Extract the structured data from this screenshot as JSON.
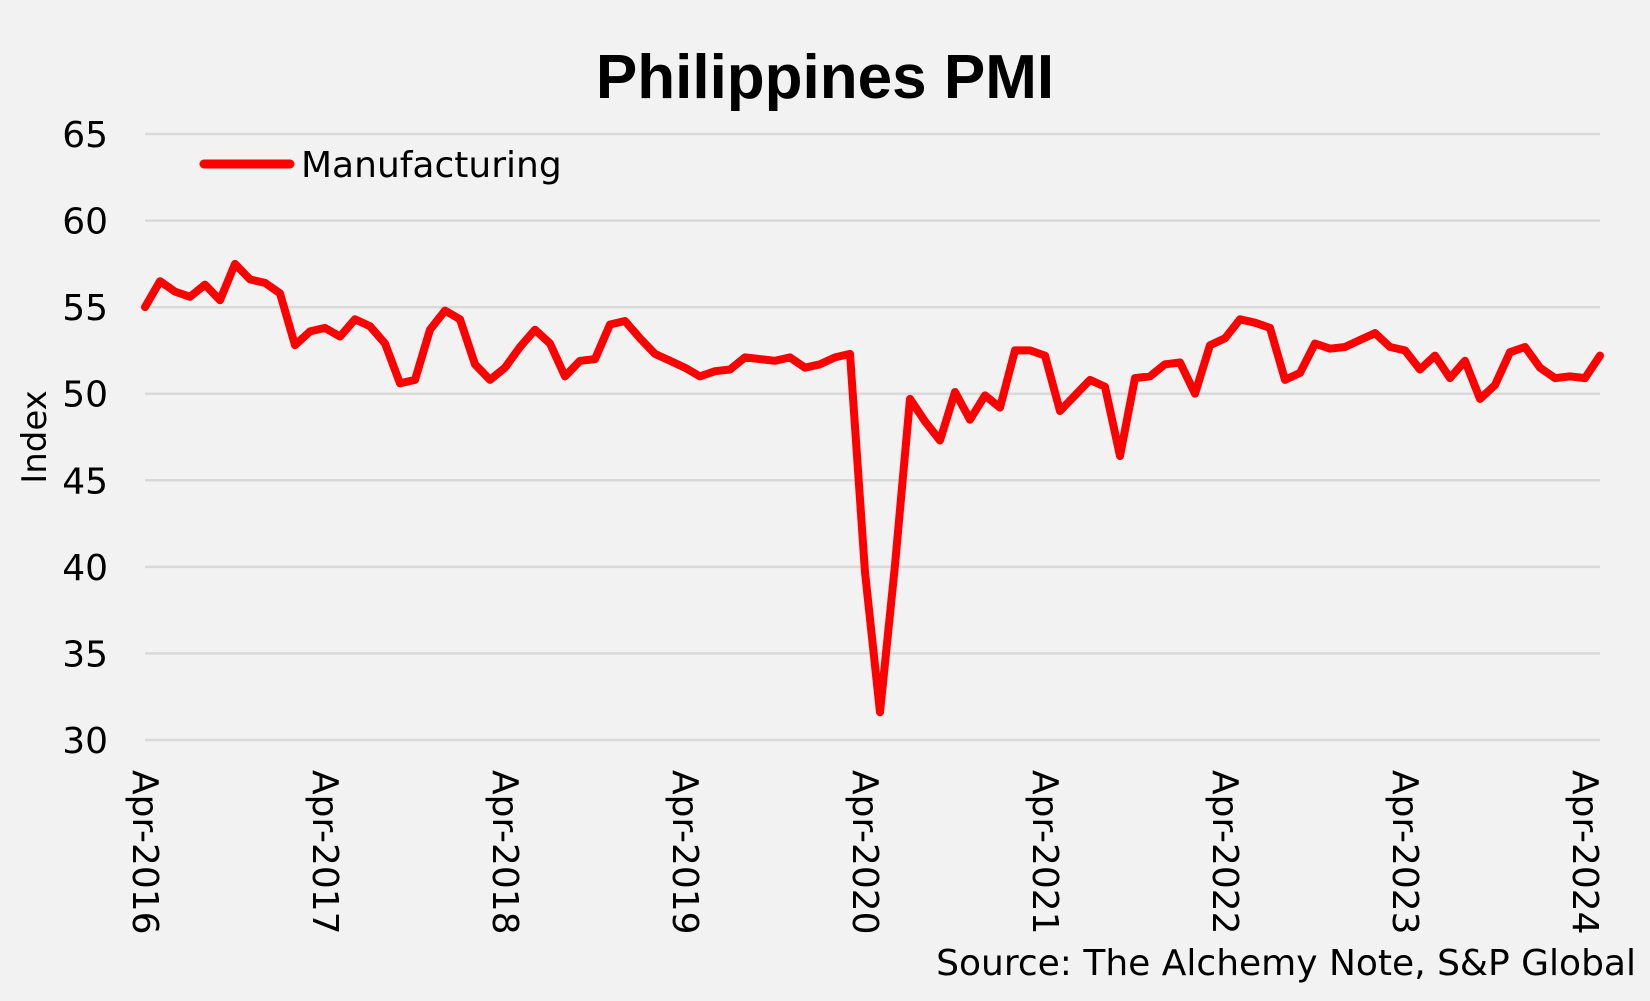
{
  "chart_data": {
    "type": "line",
    "title": "Philippines PMI",
    "ylabel": "Index",
    "xlabel": "",
    "ylim": [
      30,
      65
    ],
    "yticks": [
      30,
      35,
      40,
      45,
      50,
      55,
      60,
      65
    ],
    "grid": true,
    "legend_position": "top-left",
    "x_tick_labels": [
      "Apr-2016",
      "Apr-2017",
      "Apr-2018",
      "Apr-2019",
      "Apr-2020",
      "Apr-2021",
      "Apr-2022",
      "Apr-2023",
      "Apr-2024"
    ],
    "x_start": "Apr-2016",
    "x_end": "Apr-2024",
    "series": [
      {
        "name": "Manufacturing",
        "color": "#ff0000",
        "values": [
          55.0,
          56.5,
          55.9,
          55.6,
          56.3,
          55.4,
          57.5,
          56.6,
          56.4,
          55.8,
          52.8,
          53.6,
          53.8,
          53.3,
          54.3,
          53.9,
          52.9,
          50.6,
          50.8,
          53.7,
          54.8,
          54.3,
          51.7,
          50.8,
          51.5,
          52.7,
          53.7,
          52.9,
          51.0,
          51.9,
          52.0,
          54.0,
          54.2,
          53.2,
          52.3,
          51.9,
          51.5,
          51.0,
          51.3,
          51.4,
          52.1,
          52.0,
          51.9,
          52.1,
          51.5,
          51.7,
          52.1,
          52.3,
          39.7,
          31.6,
          40.1,
          49.7,
          48.4,
          47.3,
          50.1,
          48.5,
          49.9,
          49.2,
          52.5,
          52.5,
          52.2,
          49.0,
          49.9,
          50.8,
          50.4,
          46.4,
          50.9,
          51.0,
          51.7,
          51.8,
          50.0,
          52.8,
          53.2,
          54.3,
          54.1,
          53.8,
          50.8,
          51.2,
          52.9,
          52.6,
          52.7,
          53.1,
          53.5,
          52.7,
          52.5,
          51.4,
          52.2,
          50.9,
          51.9,
          49.7,
          50.5,
          52.4,
          52.7,
          51.5,
          50.9,
          51.0,
          50.9,
          52.2
        ]
      }
    ],
    "source": "Source: The Alchemy Note, S&P Global"
  }
}
